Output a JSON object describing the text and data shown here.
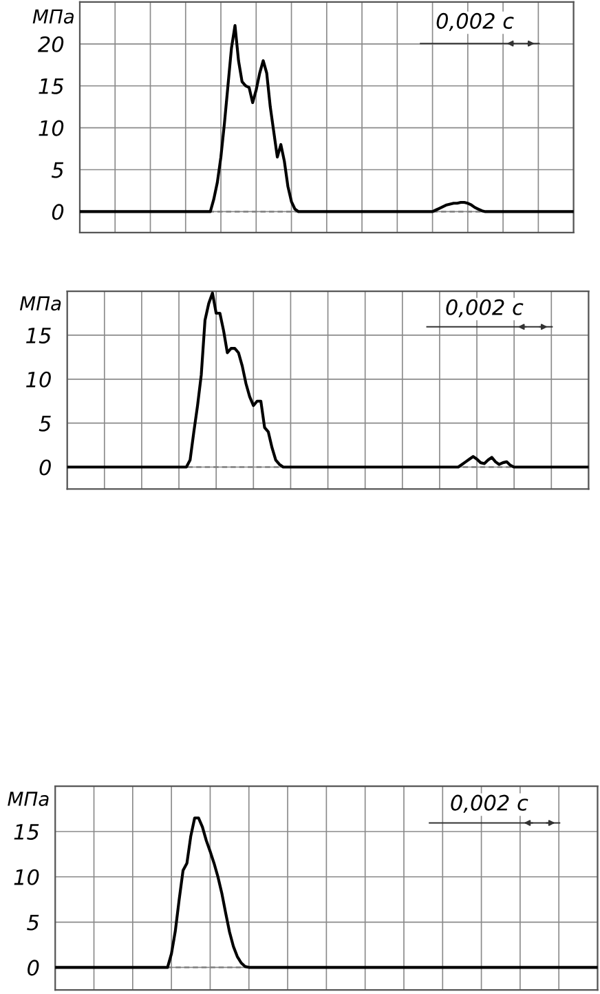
{
  "chart_data": [
    {
      "type": "line",
      "ylabel": "МПа",
      "annotations": [
        "0,002 с"
      ],
      "ylim": [
        -2.5,
        25
      ],
      "yticks": [
        0,
        5,
        10,
        15,
        20
      ],
      "grid": true,
      "tick_labels": "y",
      "line_style": "solid",
      "ref_lines": [
        {
          "axis": "y",
          "value": 0,
          "color": "#808080",
          "line_style": "dashed"
        }
      ],
      "categories": [
        null,
        null,
        null,
        null,
        null,
        null,
        null,
        null,
        null,
        null,
        null,
        null,
        null,
        null,
        null,
        null,
        null,
        null,
        null,
        null,
        null,
        null,
        null,
        null,
        null,
        null,
        null,
        null,
        null,
        null,
        null,
        null,
        null,
        null,
        null,
        null,
        null,
        null,
        null,
        null,
        null,
        null,
        null,
        null,
        null,
        null,
        null,
        null,
        null,
        null,
        null,
        null,
        null,
        null,
        null,
        null,
        null,
        null,
        null,
        null,
        null,
        null,
        null,
        null,
        null,
        null,
        null,
        null,
        null,
        null,
        null,
        null,
        null,
        null,
        null,
        null,
        null,
        null,
        null,
        null,
        null,
        null,
        null,
        null,
        null,
        null,
        null,
        null,
        null,
        null,
        null,
        null,
        null,
        null,
        null,
        null,
        null,
        null,
        null,
        null,
        null,
        null,
        null,
        null,
        null,
        null,
        null,
        null,
        null,
        null,
        null,
        null,
        null,
        null,
        null,
        null,
        null,
        null,
        null,
        null,
        null,
        null,
        null,
        null,
        null,
        null,
        null,
        null,
        null,
        null,
        null,
        null,
        null,
        null,
        null,
        null,
        null,
        null,
        null,
        null,
        null
      ],
      "series": [
        {
          "color": "#000000",
          "values": [
            0,
            0,
            0,
            0,
            0,
            0,
            0,
            0,
            0,
            0,
            0,
            0,
            0,
            0,
            0,
            0,
            0,
            0,
            0,
            0,
            0,
            0,
            0,
            0,
            0,
            0,
            0,
            0,
            0,
            0,
            0,
            0,
            0,
            0,
            0,
            0,
            0,
            0,
            1.5,
            3.5,
            6.5,
            10.5,
            15,
            19.5,
            22.2,
            18,
            15.5,
            15,
            14.8,
            13,
            14.5,
            16.5,
            18,
            16.5,
            12.5,
            9.5,
            6.5,
            8,
            6,
            3,
            1.2,
            0.3,
            0,
            0,
            0,
            0,
            0,
            0,
            0,
            0,
            0,
            0,
            0,
            0,
            0,
            0,
            0,
            0,
            0,
            0,
            0,
            0,
            0,
            0,
            0,
            0,
            0,
            0,
            0,
            0,
            0,
            0,
            0,
            0,
            0,
            0,
            0,
            0,
            0,
            0,
            0,
            0.2,
            0.4,
            0.6,
            0.8,
            0.9,
            1,
            1,
            1.1,
            1.1,
            1,
            0.8,
            0.5,
            0.3,
            0.1,
            0,
            0,
            0,
            0,
            0,
            0,
            0,
            0,
            0,
            0,
            0,
            0,
            0,
            0,
            0,
            0,
            0,
            0,
            0,
            0,
            0,
            0,
            0,
            0,
            0,
            0
          ]
        }
      ]
    },
    {
      "type": "line",
      "ylabel": "МПа",
      "annotations": [
        "0,002 с"
      ],
      "ylim": [
        -2.5,
        20
      ],
      "yticks": [
        0,
        5,
        10,
        15
      ],
      "grid": true,
      "tick_labels": "y",
      "line_style": "solid",
      "ref_lines": [
        {
          "axis": "y",
          "value": 0,
          "color": "#808080",
          "line_style": "dashed"
        }
      ],
      "categories": [
        null,
        null,
        null,
        null,
        null,
        null,
        null,
        null,
        null,
        null,
        null,
        null,
        null,
        null,
        null,
        null,
        null,
        null,
        null,
        null,
        null,
        null,
        null,
        null,
        null,
        null,
        null,
        null,
        null,
        null,
        null,
        null,
        null,
        null,
        null,
        null,
        null,
        null,
        null,
        null,
        null,
        null,
        null,
        null,
        null,
        null,
        null,
        null,
        null,
        null,
        null,
        null,
        null,
        null,
        null,
        null,
        null,
        null,
        null,
        null,
        null,
        null,
        null,
        null,
        null,
        null,
        null,
        null,
        null,
        null,
        null,
        null,
        null,
        null,
        null,
        null,
        null,
        null,
        null,
        null,
        null,
        null,
        null,
        null,
        null,
        null,
        null,
        null,
        null,
        null,
        null,
        null,
        null,
        null,
        null,
        null,
        null,
        null,
        null,
        null,
        null,
        null,
        null,
        null,
        null,
        null,
        null,
        null,
        null,
        null,
        null,
        null,
        null,
        null,
        null,
        null,
        null,
        null,
        null,
        null,
        null,
        null,
        null,
        null,
        null,
        null,
        null,
        null,
        null,
        null,
        null,
        null,
        null,
        null,
        null,
        null,
        null,
        null,
        null,
        null,
        null
      ],
      "series": [
        {
          "color": "#000000",
          "values": [
            0,
            0,
            0,
            0,
            0,
            0,
            0,
            0,
            0,
            0,
            0,
            0,
            0,
            0,
            0,
            0,
            0,
            0,
            0,
            0,
            0,
            0,
            0,
            0,
            0,
            0,
            0,
            0,
            0,
            0,
            0,
            0,
            0,
            0.8,
            4,
            7,
            10.5,
            16.7,
            18.6,
            19.8,
            17.5,
            17.5,
            15.5,
            13,
            13.5,
            13.5,
            13,
            11.5,
            9.5,
            8,
            7,
            7.5,
            7.5,
            4.5,
            4,
            2.2,
            0.8,
            0.3,
            0,
            0,
            0,
            0,
            0,
            0,
            0,
            0,
            0,
            0,
            0,
            0,
            0,
            0,
            0,
            0,
            0,
            0,
            0,
            0,
            0,
            0,
            0,
            0,
            0,
            0,
            0,
            0,
            0,
            0,
            0,
            0,
            0,
            0,
            0,
            0,
            0,
            0,
            0,
            0,
            0,
            0,
            0,
            0,
            0,
            0,
            0,
            0,
            0.3,
            0.6,
            0.9,
            1.2,
            0.9,
            0.5,
            0.4,
            0.8,
            1.1,
            0.6,
            0.3,
            0.5,
            0.6,
            0.2,
            0,
            0,
            0,
            0,
            0,
            0,
            0,
            0,
            0,
            0,
            0,
            0,
            0,
            0,
            0,
            0,
            0,
            0,
            0,
            0,
            0
          ]
        }
      ]
    },
    {
      "type": "line",
      "ylabel": "МПа",
      "annotations": [
        "0,002 с"
      ],
      "ylim": [
        -2.5,
        20
      ],
      "yticks": [
        0,
        5,
        10,
        15
      ],
      "grid": true,
      "tick_labels": "y",
      "line_style": "solid",
      "ref_lines": [
        {
          "axis": "y",
          "value": 0,
          "color": "#808080",
          "line_style": "dashed"
        }
      ],
      "categories": [
        null,
        null,
        null,
        null,
        null,
        null,
        null,
        null,
        null,
        null,
        null,
        null,
        null,
        null,
        null,
        null,
        null,
        null,
        null,
        null,
        null,
        null,
        null,
        null,
        null,
        null,
        null,
        null,
        null,
        null,
        null,
        null,
        null,
        null,
        null,
        null,
        null,
        null,
        null,
        null,
        null,
        null,
        null,
        null,
        null,
        null,
        null,
        null,
        null,
        null,
        null,
        null,
        null,
        null,
        null,
        null,
        null,
        null,
        null,
        null,
        null,
        null,
        null,
        null,
        null,
        null,
        null,
        null,
        null,
        null,
        null,
        null,
        null,
        null,
        null,
        null,
        null,
        null,
        null,
        null,
        null,
        null,
        null,
        null,
        null,
        null,
        null,
        null,
        null,
        null,
        null,
        null,
        null,
        null,
        null,
        null,
        null,
        null,
        null,
        null,
        null,
        null,
        null,
        null,
        null,
        null,
        null,
        null,
        null,
        null,
        null,
        null,
        null,
        null,
        null,
        null,
        null,
        null,
        null,
        null,
        null,
        null,
        null,
        null,
        null,
        null,
        null,
        null,
        null,
        null,
        null,
        null,
        null,
        null,
        null,
        null,
        null,
        null,
        null,
        null,
        null
      ],
      "series": [
        {
          "color": "#000000",
          "values": [
            0,
            0,
            0,
            0,
            0,
            0,
            0,
            0,
            0,
            0,
            0,
            0,
            0,
            0,
            0,
            0,
            0,
            0,
            0,
            0,
            0,
            0,
            0,
            0,
            0,
            0,
            0,
            0,
            0,
            0,
            1.5,
            4,
            7.5,
            10.7,
            11.5,
            14.5,
            16.5,
            16.5,
            15.5,
            14,
            12.8,
            11.5,
            10,
            8.2,
            6,
            3.9,
            2.3,
            1.2,
            0.5,
            0.1,
            0,
            0,
            0,
            0,
            0,
            0,
            0,
            0,
            0,
            0,
            0,
            0,
            0,
            0,
            0,
            0,
            0,
            0,
            0,
            0,
            0,
            0,
            0,
            0,
            0,
            0,
            0,
            0,
            0,
            0,
            0,
            0,
            0,
            0,
            0,
            0,
            0,
            0,
            0,
            0,
            0,
            0,
            0,
            0,
            0,
            0,
            0,
            0,
            0,
            0,
            0,
            0,
            0,
            0,
            0,
            0,
            0,
            0,
            0,
            0,
            0,
            0,
            0,
            0,
            0,
            0,
            0,
            0,
            0,
            0,
            0,
            0,
            0,
            0,
            0,
            0,
            0,
            0,
            0,
            0,
            0,
            0,
            0,
            0,
            0,
            0,
            0,
            0,
            0,
            0,
            0
          ]
        }
      ]
    }
  ]
}
